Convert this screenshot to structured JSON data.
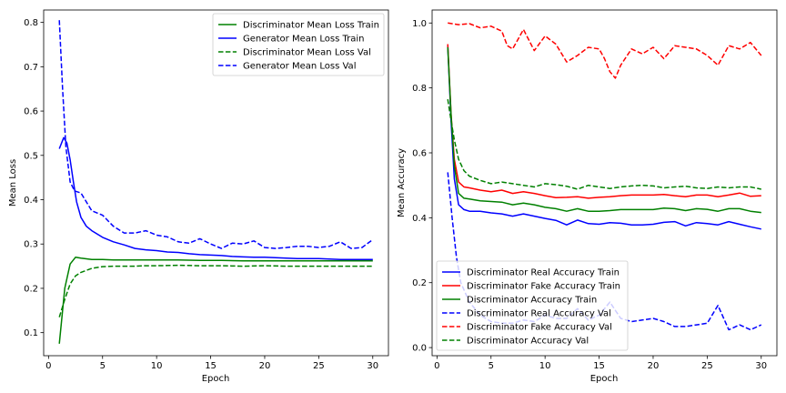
{
  "chart_data": [
    {
      "type": "line",
      "xlabel": "Epoch",
      "ylabel": "Mean Loss",
      "xlim": [
        -0.45,
        31.45
      ],
      "ylim": [
        0.048,
        0.828
      ],
      "xticks": [
        0,
        5,
        10,
        15,
        20,
        25,
        30
      ],
      "yticks": [
        0.1,
        0.2,
        0.3,
        0.4,
        0.5,
        0.6,
        0.7,
        0.8
      ],
      "legend_position": "top-right",
      "grid": false,
      "series": [
        {
          "name": "Discriminator Mean Loss Train",
          "color": "#008000",
          "dash": "solid",
          "x": [
            1,
            1.5,
            2,
            2.5,
            3,
            4,
            5,
            6,
            7,
            8,
            9,
            10,
            12,
            14,
            16,
            18,
            20,
            22,
            24,
            26,
            28,
            30
          ],
          "y": [
            0.075,
            0.2,
            0.255,
            0.27,
            0.268,
            0.265,
            0.265,
            0.264,
            0.264,
            0.264,
            0.264,
            0.264,
            0.264,
            0.263,
            0.263,
            0.262,
            0.262,
            0.262,
            0.262,
            0.262,
            0.262,
            0.262
          ]
        },
        {
          "name": "Generator Mean Loss Train",
          "color": "#0000ff",
          "dash": "solid",
          "x": [
            1,
            1.4,
            1.7,
            2.0,
            2.3,
            2.6,
            3,
            3.5,
            4,
            5,
            6,
            7,
            8,
            9,
            10,
            11,
            12,
            13,
            14,
            15,
            16,
            17,
            18,
            19,
            20,
            21,
            22,
            23,
            24,
            25,
            26,
            27,
            28,
            29,
            30
          ],
          "y": [
            0.515,
            0.54,
            0.528,
            0.49,
            0.44,
            0.395,
            0.36,
            0.34,
            0.33,
            0.315,
            0.305,
            0.298,
            0.29,
            0.287,
            0.285,
            0.282,
            0.281,
            0.278,
            0.276,
            0.275,
            0.274,
            0.272,
            0.271,
            0.27,
            0.27,
            0.269,
            0.268,
            0.267,
            0.267,
            0.267,
            0.266,
            0.265,
            0.265,
            0.265,
            0.265
          ]
        },
        {
          "name": "Discriminator Mean Loss Val",
          "color": "#008000",
          "dash": "dashed",
          "x": [
            1,
            1.5,
            2,
            2.5,
            3,
            4,
            5,
            6,
            7,
            8,
            9,
            10,
            12,
            14,
            16,
            18,
            20,
            22,
            24,
            26,
            28,
            30
          ],
          "y": [
            0.135,
            0.175,
            0.21,
            0.228,
            0.236,
            0.245,
            0.249,
            0.25,
            0.25,
            0.25,
            0.251,
            0.251,
            0.252,
            0.251,
            0.251,
            0.25,
            0.251,
            0.25,
            0.25,
            0.25,
            0.25,
            0.25
          ]
        },
        {
          "name": "Generator Mean Loss Val",
          "color": "#0000ff",
          "dash": "dashed",
          "x": [
            1,
            1.3,
            1.6,
            2.0,
            2.4,
            3,
            3.5,
            4,
            5,
            6,
            7,
            8,
            9,
            10,
            11,
            12,
            13,
            14,
            15,
            16,
            17,
            18,
            19,
            20,
            21,
            22,
            23,
            24,
            25,
            26,
            27,
            28,
            29,
            30
          ],
          "y": [
            0.805,
            0.65,
            0.52,
            0.44,
            0.42,
            0.415,
            0.395,
            0.375,
            0.365,
            0.34,
            0.325,
            0.325,
            0.33,
            0.32,
            0.316,
            0.305,
            0.302,
            0.312,
            0.3,
            0.29,
            0.302,
            0.3,
            0.307,
            0.292,
            0.29,
            0.292,
            0.295,
            0.295,
            0.292,
            0.295,
            0.305,
            0.29,
            0.292,
            0.31
          ]
        }
      ]
    },
    {
      "type": "line",
      "xlabel": "Epoch",
      "ylabel": "Mean Accuracy",
      "xlim": [
        -0.45,
        31.45
      ],
      "ylim": [
        -0.025,
        1.04
      ],
      "xticks": [
        0,
        5,
        10,
        15,
        20,
        25,
        30
      ],
      "yticks": [
        0.0,
        0.2,
        0.4,
        0.6,
        0.8,
        1.0
      ],
      "legend_position": "bottom-left",
      "grid": false,
      "series": [
        {
          "name": "Discriminator Real Accuracy Train",
          "color": "#0000ff",
          "dash": "solid",
          "x": [
            1,
            1.3,
            1.6,
            2,
            2.5,
            3,
            4,
            5,
            6,
            7,
            8,
            9,
            10,
            11,
            12,
            13,
            14,
            15,
            16,
            17,
            18,
            19,
            20,
            21,
            22,
            23,
            24,
            25,
            26,
            27,
            28,
            29,
            30
          ],
          "y": [
            0.93,
            0.7,
            0.52,
            0.44,
            0.425,
            0.42,
            0.42,
            0.415,
            0.412,
            0.405,
            0.412,
            0.405,
            0.398,
            0.392,
            0.378,
            0.393,
            0.382,
            0.38,
            0.385,
            0.383,
            0.378,
            0.378,
            0.38,
            0.386,
            0.388,
            0.375,
            0.385,
            0.382,
            0.378,
            0.388,
            0.38,
            0.372,
            0.365
          ]
        },
        {
          "name": "Discriminator Fake Accuracy Train",
          "color": "#ff0000",
          "dash": "solid",
          "x": [
            1,
            1.3,
            1.6,
            2,
            2.5,
            3,
            4,
            5,
            6,
            7,
            8,
            9,
            10,
            11,
            12,
            13,
            14,
            15,
            16,
            17,
            18,
            19,
            20,
            21,
            22,
            23,
            24,
            25,
            26,
            27,
            28,
            29,
            30
          ],
          "y": [
            0.935,
            0.72,
            0.58,
            0.51,
            0.495,
            0.492,
            0.485,
            0.48,
            0.485,
            0.475,
            0.48,
            0.475,
            0.468,
            0.462,
            0.463,
            0.465,
            0.46,
            0.463,
            0.465,
            0.468,
            0.47,
            0.47,
            0.47,
            0.472,
            0.468,
            0.465,
            0.47,
            0.47,
            0.465,
            0.47,
            0.476,
            0.466,
            0.468
          ]
        },
        {
          "name": "Discriminator Accuracy Train",
          "color": "#008000",
          "dash": "solid",
          "x": [
            1,
            1.3,
            1.6,
            2,
            2.5,
            3,
            4,
            5,
            6,
            7,
            8,
            9,
            10,
            11,
            12,
            13,
            14,
            15,
            16,
            17,
            18,
            19,
            20,
            21,
            22,
            23,
            24,
            25,
            26,
            27,
            28,
            29,
            30
          ],
          "y": [
            0.925,
            0.72,
            0.56,
            0.475,
            0.46,
            0.458,
            0.452,
            0.45,
            0.448,
            0.44,
            0.445,
            0.44,
            0.432,
            0.428,
            0.42,
            0.428,
            0.42,
            0.42,
            0.422,
            0.425,
            0.425,
            0.425,
            0.425,
            0.43,
            0.428,
            0.422,
            0.428,
            0.426,
            0.42,
            0.428,
            0.428,
            0.42,
            0.416
          ]
        },
        {
          "name": "Discriminator Real Accuracy Val",
          "color": "#0000ff",
          "dash": "dashed",
          "x": [
            1,
            1.4,
            1.8,
            2.2,
            3,
            4,
            5,
            6,
            7,
            8,
            9,
            10,
            11,
            12,
            13,
            14,
            15,
            16,
            17,
            18,
            19,
            20,
            21,
            22,
            23,
            24,
            25,
            26,
            27,
            28,
            29,
            30
          ],
          "y": [
            0.54,
            0.4,
            0.28,
            0.2,
            0.14,
            0.1,
            0.08,
            0.075,
            0.075,
            0.085,
            0.08,
            0.1,
            0.09,
            0.09,
            0.12,
            0.085,
            0.1,
            0.14,
            0.09,
            0.08,
            0.085,
            0.09,
            0.08,
            0.065,
            0.065,
            0.07,
            0.075,
            0.13,
            0.055,
            0.07,
            0.055,
            0.07
          ]
        },
        {
          "name": "Discriminator Fake Accuracy Val",
          "color": "#ff0000",
          "dash": "dashed",
          "x": [
            1,
            2,
            3,
            4,
            5,
            6,
            6.5,
            7,
            7.5,
            8,
            9,
            10,
            11,
            12,
            13,
            14,
            15,
            15.5,
            16,
            16.5,
            17,
            18,
            19,
            20,
            21,
            22,
            23,
            24,
            25,
            26,
            27,
            28,
            29,
            30
          ],
          "y": [
            1.0,
            0.995,
            0.998,
            0.985,
            0.99,
            0.975,
            0.93,
            0.92,
            0.95,
            0.98,
            0.915,
            0.96,
            0.935,
            0.88,
            0.9,
            0.925,
            0.92,
            0.89,
            0.85,
            0.83,
            0.87,
            0.92,
            0.905,
            0.925,
            0.89,
            0.93,
            0.925,
            0.92,
            0.9,
            0.87,
            0.93,
            0.92,
            0.94,
            0.9
          ]
        },
        {
          "name": "Discriminator Accuracy Val",
          "color": "#008000",
          "dash": "dashed",
          "x": [
            1,
            1.3,
            1.6,
            2,
            2.5,
            3,
            4,
            5,
            6,
            7,
            8,
            9,
            10,
            11,
            12,
            13,
            14,
            15,
            16,
            17,
            18,
            19,
            20,
            21,
            22,
            23,
            24,
            25,
            26,
            27,
            28,
            29,
            30
          ],
          "y": [
            0.765,
            0.7,
            0.64,
            0.58,
            0.545,
            0.528,
            0.515,
            0.505,
            0.51,
            0.505,
            0.5,
            0.495,
            0.505,
            0.502,
            0.497,
            0.488,
            0.5,
            0.495,
            0.49,
            0.495,
            0.498,
            0.5,
            0.498,
            0.492,
            0.495,
            0.497,
            0.492,
            0.49,
            0.495,
            0.492,
            0.495,
            0.495,
            0.488
          ]
        }
      ]
    }
  ]
}
